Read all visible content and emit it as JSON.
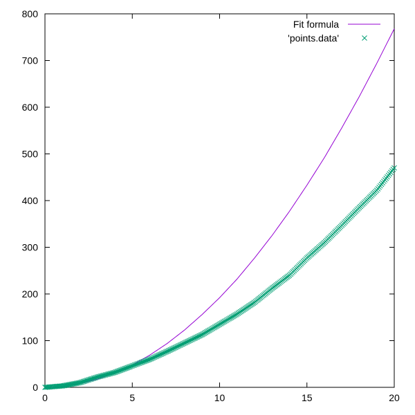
{
  "chart_data": {
    "type": "scatter",
    "title": "",
    "xlabel": "",
    "ylabel": "",
    "xlim": [
      0,
      20
    ],
    "ylim": [
      0,
      800
    ],
    "x_ticks": [
      0,
      5,
      10,
      15,
      20
    ],
    "y_ticks": [
      0,
      100,
      200,
      300,
      400,
      500,
      600,
      700,
      800
    ],
    "grid": false,
    "legend_position": "top-right",
    "series": [
      {
        "name": "Fit formula",
        "kind": "line",
        "color": "#9400d3",
        "x": [
          0,
          1,
          2,
          3,
          4,
          5,
          6,
          7,
          8,
          9,
          10,
          11,
          12,
          13,
          14,
          15,
          16,
          17,
          18,
          19,
          20
        ],
        "y": [
          0,
          1.9,
          7.7,
          17.3,
          30.8,
          48,
          69,
          94,
          123,
          156,
          192,
          232,
          277,
          325,
          377,
          433,
          492,
          556,
          623,
          694,
          768
        ]
      },
      {
        "name": "'points.data'",
        "kind": "scatter",
        "marker": "x",
        "color": "#009e73",
        "x": [
          0,
          1,
          2,
          3,
          4,
          5,
          6,
          7,
          8,
          9,
          10,
          11,
          12,
          13,
          14,
          15,
          16,
          17,
          18,
          19,
          20
        ],
        "y": [
          0,
          3,
          10,
          22,
          32,
          46,
          60,
          77,
          95,
          113,
          135,
          157,
          182,
          212,
          240,
          277,
          310,
          347,
          385,
          422,
          470
        ]
      }
    ]
  }
}
